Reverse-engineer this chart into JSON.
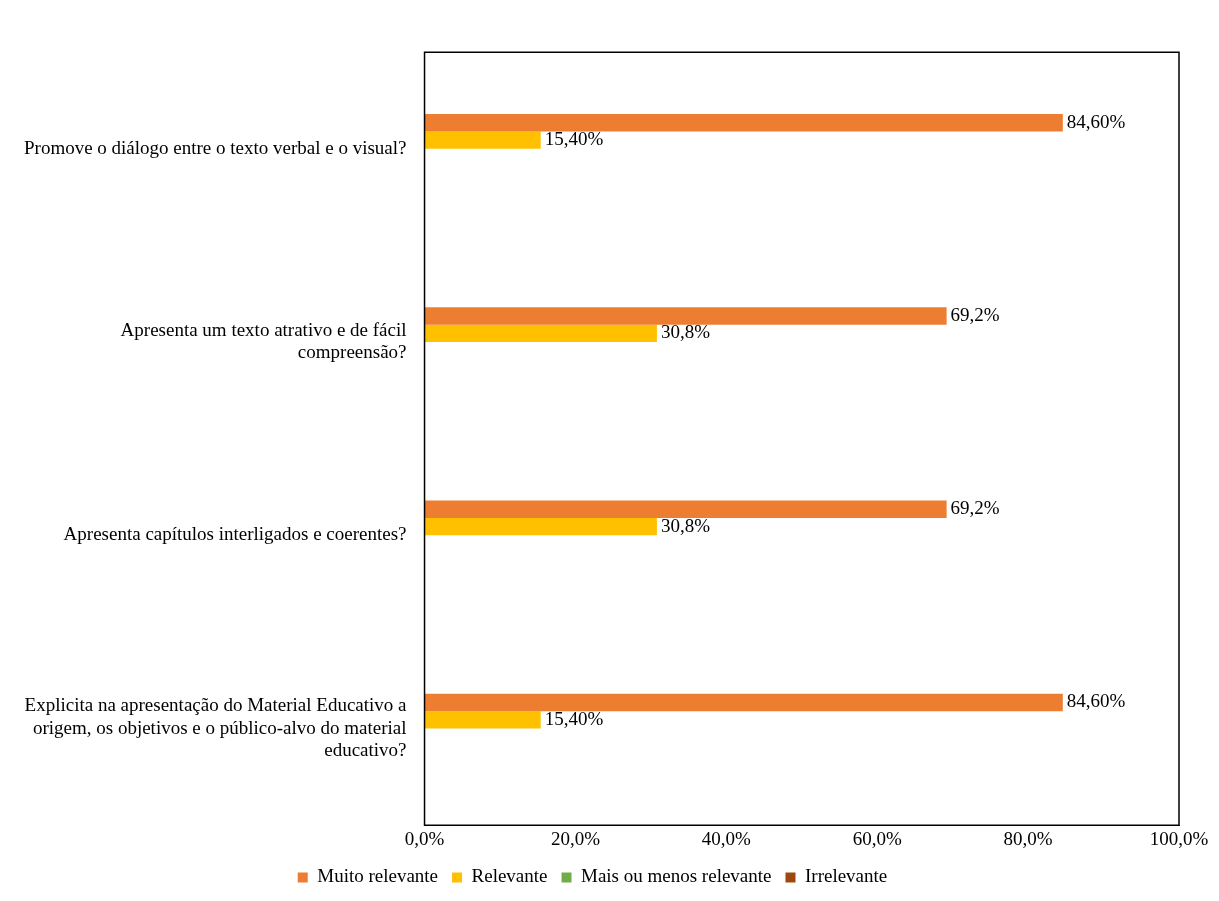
{
  "chart_data": {
    "type": "bar",
    "orientation": "horizontal",
    "categories": [
      "Promove o diálogo entre o texto verbal e o visual?",
      "Apresenta um texto atrativo e de fácil compreensão?",
      "Apresenta capítulos interligados e coerentes?",
      "Explicita na apresentação do Material Educativo a origem, os objetivos e o público-alvo do material educativo?"
    ],
    "series": [
      {
        "name": "Muito relevante",
        "color": "#ed7d31",
        "values": [
          84.6,
          69.2,
          69.2,
          84.6
        ],
        "value_labels": [
          "84,60%",
          "69,2%",
          "69,2%",
          "84,60%"
        ]
      },
      {
        "name": "Relevante",
        "color": "#ffc000",
        "values": [
          15.4,
          30.8,
          30.8,
          15.4
        ],
        "value_labels": [
          "15,40%",
          "30,8%",
          "30,8%",
          "15,40%"
        ]
      },
      {
        "name": "Mais ou menos relevante",
        "color": "#70ad47",
        "values": [
          0,
          0,
          0,
          0
        ]
      },
      {
        "name": "Irrelevante",
        "color": "#9e480e",
        "values": [
          0,
          0,
          0,
          0
        ]
      }
    ],
    "xlim": [
      0,
      100
    ],
    "xticks": [
      {
        "value": 0,
        "label": "0,0%"
      },
      {
        "value": 20,
        "label": "20,0%"
      },
      {
        "value": 40,
        "label": "40,0%"
      },
      {
        "value": 60,
        "label": "60,0%"
      },
      {
        "value": 80,
        "label": "80,0%"
      },
      {
        "value": 100,
        "label": "100,0%"
      }
    ],
    "grid": false,
    "legend": "bottom"
  }
}
